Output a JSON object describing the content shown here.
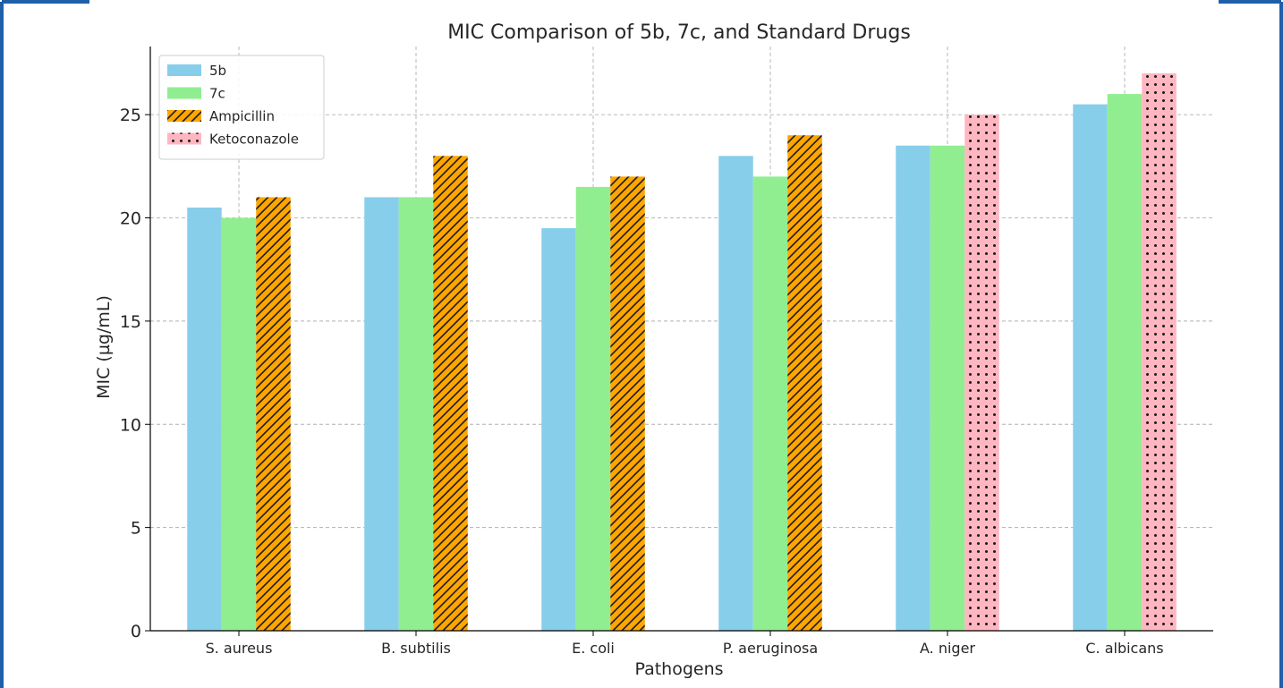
{
  "chart_data": {
    "type": "bar",
    "title": "MIC Comparison of 5b, 7c, and Standard Drugs",
    "xlabel": "Pathogens",
    "ylabel": "MIC (µg/mL)",
    "ylim": [
      0,
      28.3
    ],
    "yticks": [
      "0",
      "5",
      "10",
      "15",
      "20",
      "25"
    ],
    "grid": true,
    "legend_position": "top-left",
    "categories": [
      "S. aureus",
      "B. subtilis",
      "E. coli",
      "P. aeruginosa",
      "A. niger",
      "C. albicans"
    ],
    "series": [
      {
        "name": "5b",
        "color": "#87ceeb",
        "pattern": "none",
        "values": [
          20.5,
          21,
          19.5,
          23,
          23.5,
          25.5
        ]
      },
      {
        "name": "7c",
        "color": "#90ee90",
        "pattern": "none",
        "values": [
          20,
          21,
          21.5,
          22,
          23.5,
          26
        ]
      },
      {
        "name": "Ampicillin",
        "color": "#ffa500",
        "pattern": "diagonal-hatch",
        "values": [
          21,
          23,
          22,
          24,
          null,
          null
        ]
      },
      {
        "name": "Ketoconazole",
        "color": "#ffb6c1",
        "pattern": "dots",
        "values": [
          null,
          null,
          null,
          null,
          25,
          27
        ]
      }
    ]
  },
  "colors": {
    "frame_border": "#1f5fa8",
    "grid": "#b0b0b0",
    "axis": "#000000"
  }
}
